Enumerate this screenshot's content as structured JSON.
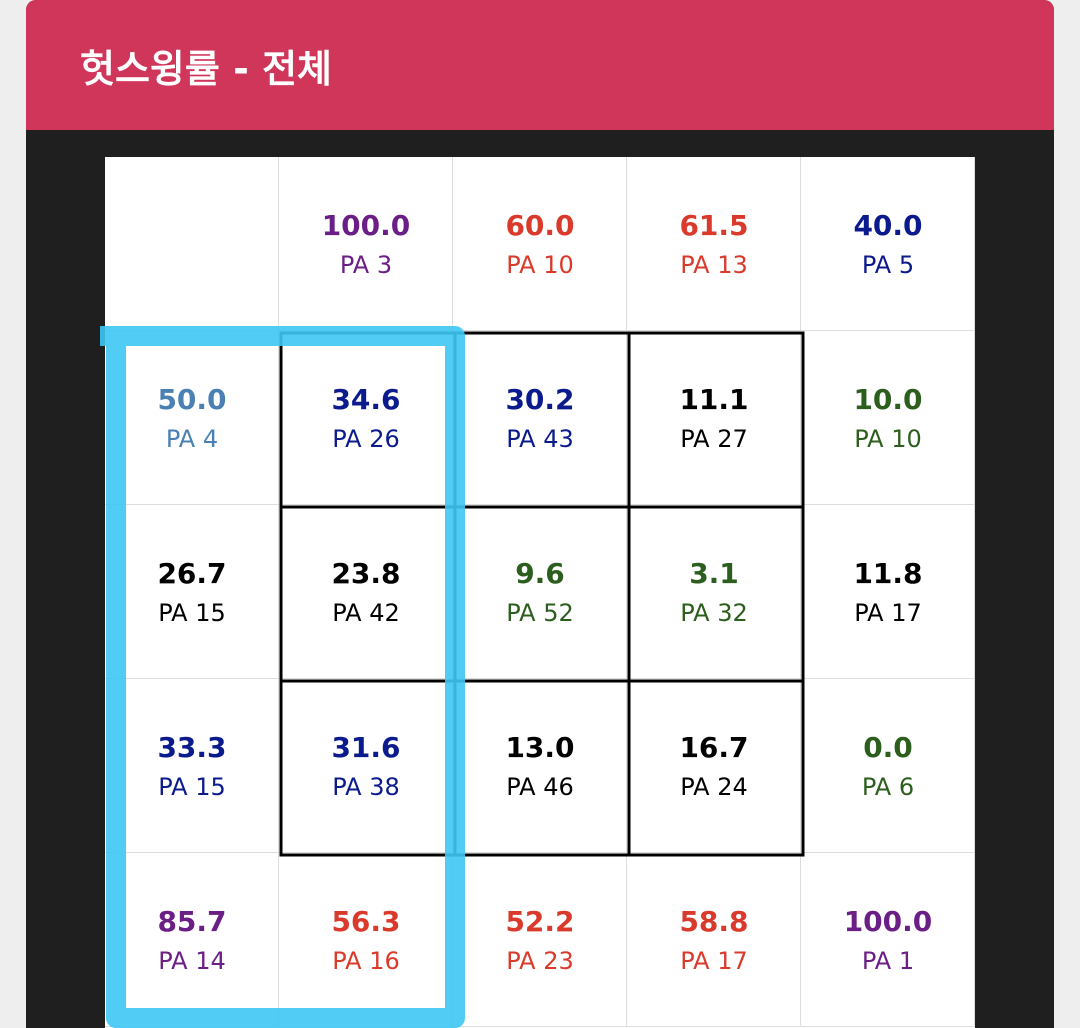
{
  "header": {
    "title": "헛스윙률 - 전체"
  },
  "grid": {
    "rows": [
      [
        null,
        {
          "value": "100.0",
          "pa": "PA 3",
          "color": "#6b1f86"
        },
        {
          "value": "60.0",
          "pa": "PA 10",
          "color": "#d93a2b"
        },
        {
          "value": "61.5",
          "pa": "PA 13",
          "color": "#d93a2b"
        },
        {
          "value": "40.0",
          "pa": "PA 5",
          "color": "#0b1a8c"
        }
      ],
      [
        {
          "value": "50.0",
          "pa": "PA 4",
          "color": "#4a80b4"
        },
        {
          "value": "34.6",
          "pa": "PA 26",
          "color": "#0b1a8c"
        },
        {
          "value": "30.2",
          "pa": "PA 43",
          "color": "#0b1a8c"
        },
        {
          "value": "11.1",
          "pa": "PA 27",
          "color": "#000000"
        },
        {
          "value": "10.0",
          "pa": "PA 10",
          "color": "#2c5e1e"
        }
      ],
      [
        {
          "value": "26.7",
          "pa": "PA 15",
          "color": "#000000"
        },
        {
          "value": "23.8",
          "pa": "PA 42",
          "color": "#000000"
        },
        {
          "value": "9.6",
          "pa": "PA 52",
          "color": "#2c5e1e"
        },
        {
          "value": "3.1",
          "pa": "PA 32",
          "color": "#2c5e1e"
        },
        {
          "value": "11.8",
          "pa": "PA 17",
          "color": "#000000"
        }
      ],
      [
        {
          "value": "33.3",
          "pa": "PA 15",
          "color": "#0b1a8c"
        },
        {
          "value": "31.6",
          "pa": "PA 38",
          "color": "#0b1a8c"
        },
        {
          "value": "13.0",
          "pa": "PA 46",
          "color": "#000000"
        },
        {
          "value": "16.7",
          "pa": "PA 24",
          "color": "#000000"
        },
        {
          "value": "0.0",
          "pa": "PA 6",
          "color": "#2c5e1e"
        }
      ],
      [
        {
          "value": "85.7",
          "pa": "PA 14",
          "color": "#6b1f86"
        },
        {
          "value": "56.3",
          "pa": "PA 16",
          "color": "#d93a2b"
        },
        {
          "value": "52.2",
          "pa": "PA 23",
          "color": "#d93a2b"
        },
        {
          "value": "58.8",
          "pa": "PA 17",
          "color": "#d93a2b"
        },
        {
          "value": "100.0",
          "pa": "PA 1",
          "color": "#6b1f86"
        }
      ]
    ]
  }
}
